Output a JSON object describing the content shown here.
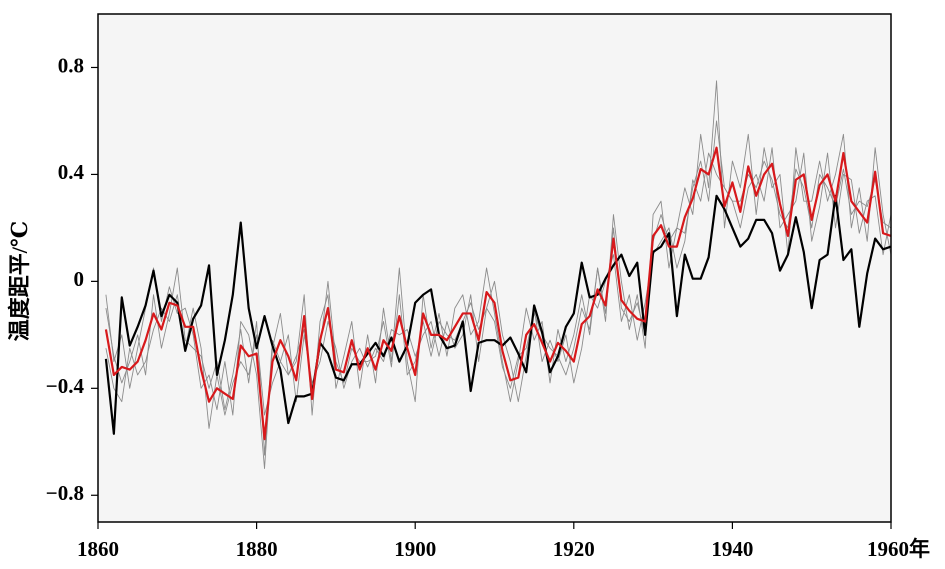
{
  "chart_data": {
    "type": "line",
    "y_label": "温度距平/℃",
    "x": [
      1861,
      1862,
      1863,
      1864,
      1865,
      1866,
      1867,
      1868,
      1869,
      1870,
      1871,
      1872,
      1873,
      1874,
      1875,
      1876,
      1877,
      1878,
      1879,
      1880,
      1881,
      1882,
      1883,
      1884,
      1885,
      1886,
      1887,
      1888,
      1889,
      1890,
      1891,
      1892,
      1893,
      1894,
      1895,
      1896,
      1897,
      1898,
      1899,
      1900,
      1901,
      1902,
      1903,
      1904,
      1905,
      1906,
      1907,
      1908,
      1909,
      1910,
      1911,
      1912,
      1913,
      1914,
      1915,
      1916,
      1917,
      1918,
      1919,
      1920,
      1921,
      1922,
      1923,
      1924,
      1925,
      1926,
      1927,
      1928,
      1929,
      1930,
      1931,
      1932,
      1933,
      1934,
      1935,
      1936,
      1937,
      1938,
      1939,
      1940,
      1941,
      1942,
      1943,
      1944,
      1945,
      1946,
      1947,
      1948,
      1949,
      1950,
      1951,
      1952,
      1953,
      1954,
      1955,
      1956,
      1957,
      1958,
      1959,
      1960
    ],
    "series": [
      {
        "color": "#8c8c8c",
        "values": [
          -0.05,
          -0.3,
          -0.2,
          -0.4,
          -0.25,
          -0.1,
          0.05,
          -0.15,
          -0.02,
          -0.12,
          -0.1,
          -0.2,
          -0.4,
          -0.35,
          -0.48,
          -0.3,
          -0.5,
          -0.15,
          -0.2,
          -0.35,
          -0.7,
          -0.25,
          -0.12,
          -0.35,
          -0.3,
          -0.05,
          -0.5,
          -0.15,
          -0.05,
          -0.4,
          -0.28,
          -0.15,
          -0.4,
          -0.2,
          -0.38,
          -0.1,
          -0.3,
          0.05,
          -0.3,
          -0.45,
          -0.05,
          -0.25,
          -0.12,
          -0.28,
          -0.1,
          -0.05,
          -0.2,
          -0.15,
          0.05,
          -0.12,
          -0.3,
          -0.45,
          -0.3,
          -0.1,
          -0.22,
          -0.15,
          -0.38,
          -0.18,
          -0.3,
          -0.2,
          -0.05,
          -0.2,
          0.05,
          -0.15,
          0.25,
          0.0,
          -0.18,
          -0.05,
          -0.25,
          0.25,
          0.3,
          0.05,
          0.2,
          0.35,
          0.25,
          0.55,
          0.35,
          0.75,
          0.2,
          0.45,
          0.35,
          0.55,
          0.25,
          0.5,
          0.35,
          0.4,
          0.1,
          0.5,
          0.3,
          0.3,
          0.45,
          0.3,
          0.4,
          0.55,
          0.2,
          0.35,
          0.15,
          0.5,
          0.25,
          0.1
        ]
      },
      {
        "color": "#8c8c8c",
        "values": [
          -0.25,
          -0.4,
          -0.45,
          -0.25,
          -0.35,
          -0.3,
          -0.18,
          -0.1,
          -0.15,
          -0.05,
          -0.25,
          -0.1,
          -0.25,
          -0.55,
          -0.35,
          -0.5,
          -0.38,
          -0.3,
          -0.35,
          -0.2,
          -0.5,
          -0.38,
          -0.3,
          -0.2,
          -0.45,
          -0.2,
          -0.38,
          -0.3,
          -0.15,
          -0.25,
          -0.4,
          -0.3,
          -0.25,
          -0.32,
          -0.25,
          -0.3,
          -0.18,
          -0.2,
          -0.18,
          -0.28,
          -0.2,
          -0.15,
          -0.28,
          -0.15,
          -0.25,
          -0.2,
          -0.05,
          -0.3,
          -0.1,
          0.0,
          -0.2,
          -0.3,
          -0.45,
          -0.28,
          -0.1,
          -0.3,
          -0.22,
          -0.3,
          -0.2,
          -0.38,
          -0.25,
          -0.05,
          -0.1,
          0.0,
          0.1,
          -0.15,
          -0.05,
          -0.22,
          -0.08,
          0.1,
          0.15,
          0.2,
          0.05,
          0.15,
          0.38,
          0.3,
          0.48,
          0.4,
          0.35,
          0.3,
          0.2,
          0.35,
          0.4,
          0.3,
          0.5,
          0.2,
          0.25,
          0.3,
          0.48,
          0.15,
          0.28,
          0.48,
          0.2,
          0.4,
          0.38,
          0.18,
          0.3,
          0.32,
          0.1,
          0.25
        ]
      },
      {
        "color": "#8c8c8c",
        "values": [
          -0.1,
          -0.28,
          -0.38,
          -0.3,
          -0.2,
          -0.35,
          -0.05,
          -0.25,
          -0.12,
          0.05,
          -0.22,
          -0.25,
          -0.28,
          -0.4,
          -0.3,
          -0.48,
          -0.35,
          -0.18,
          -0.38,
          -0.15,
          -0.65,
          -0.22,
          -0.3,
          -0.35,
          -0.28,
          -0.18,
          -0.4,
          -0.25,
          0.0,
          -0.3,
          -0.38,
          -0.25,
          -0.3,
          -0.3,
          -0.28,
          -0.15,
          -0.32,
          -0.05,
          -0.35,
          -0.3,
          -0.15,
          -0.28,
          -0.15,
          -0.2,
          -0.22,
          -0.15,
          -0.08,
          -0.18,
          -0.1,
          -0.15,
          -0.32,
          -0.4,
          -0.28,
          -0.25,
          -0.12,
          -0.2,
          -0.25,
          -0.28,
          -0.35,
          -0.25,
          -0.1,
          -0.18,
          0.05,
          -0.12,
          0.2,
          -0.1,
          -0.15,
          -0.08,
          -0.2,
          0.15,
          0.25,
          0.15,
          0.2,
          0.18,
          0.35,
          0.45,
          0.3,
          0.6,
          0.35,
          0.3,
          0.3,
          0.4,
          0.35,
          0.45,
          0.38,
          0.25,
          0.2,
          0.42,
          0.35,
          0.2,
          0.4,
          0.35,
          0.28,
          0.42,
          0.25,
          0.3,
          0.28,
          0.38,
          0.22,
          0.2
        ]
      },
      {
        "color": "#000000",
        "values": [
          -0.29,
          -0.57,
          -0.06,
          -0.24,
          -0.17,
          -0.09,
          0.04,
          -0.13,
          -0.05,
          -0.08,
          -0.26,
          -0.14,
          -0.09,
          0.06,
          -0.35,
          -0.22,
          -0.05,
          0.22,
          -0.1,
          -0.25,
          -0.13,
          -0.24,
          -0.33,
          -0.53,
          -0.43,
          -0.43,
          -0.42,
          -0.23,
          -0.27,
          -0.36,
          -0.37,
          -0.31,
          -0.31,
          -0.27,
          -0.23,
          -0.28,
          -0.21,
          -0.3,
          -0.24,
          -0.08,
          -0.05,
          -0.03,
          -0.2,
          -0.25,
          -0.24,
          -0.15,
          -0.41,
          -0.23,
          -0.22,
          -0.22,
          -0.24,
          -0.21,
          -0.27,
          -0.34,
          -0.09,
          -0.19,
          -0.34,
          -0.28,
          -0.17,
          -0.12,
          0.07,
          -0.06,
          -0.05,
          0.01,
          0.06,
          0.1,
          0.02,
          0.07,
          -0.2,
          0.11,
          0.13,
          0.18,
          -0.13,
          0.1,
          0.01,
          0.01,
          0.09,
          0.32,
          0.27,
          0.2,
          0.13,
          0.16,
          0.23,
          0.23,
          0.18,
          0.04,
          0.1,
          0.24,
          0.11,
          -0.1,
          0.08,
          0.1,
          0.32,
          0.08,
          0.12,
          -0.17,
          0.03,
          0.16,
          0.12,
          0.13
        ]
      },
      {
        "color": "#d7191c",
        "values": [
          -0.18,
          -0.35,
          -0.32,
          -0.33,
          -0.3,
          -0.22,
          -0.12,
          -0.18,
          -0.08,
          -0.09,
          -0.17,
          -0.17,
          -0.33,
          -0.45,
          -0.4,
          -0.42,
          -0.44,
          -0.24,
          -0.28,
          -0.27,
          -0.59,
          -0.3,
          -0.22,
          -0.28,
          -0.37,
          -0.13,
          -0.44,
          -0.22,
          -0.1,
          -0.33,
          -0.34,
          -0.22,
          -0.33,
          -0.25,
          -0.33,
          -0.22,
          -0.26,
          -0.13,
          -0.25,
          -0.35,
          -0.12,
          -0.2,
          -0.2,
          -0.22,
          -0.17,
          -0.12,
          -0.12,
          -0.22,
          -0.04,
          -0.08,
          -0.26,
          -0.37,
          -0.36,
          -0.2,
          -0.16,
          -0.23,
          -0.3,
          -0.23,
          -0.26,
          -0.3,
          -0.16,
          -0.13,
          -0.03,
          -0.09,
          0.16,
          -0.07,
          -0.11,
          -0.14,
          -0.15,
          0.17,
          0.21,
          0.13,
          0.13,
          0.24,
          0.31,
          0.42,
          0.4,
          0.5,
          0.28,
          0.37,
          0.26,
          0.43,
          0.32,
          0.4,
          0.44,
          0.29,
          0.17,
          0.38,
          0.4,
          0.23,
          0.36,
          0.4,
          0.3,
          0.48,
          0.3,
          0.26,
          0.22,
          0.41,
          0.18,
          0.17
        ]
      }
    ],
    "xlim": [
      1860,
      1960
    ],
    "xticks": [
      1860,
      1880,
      1900,
      1920,
      1940,
      {
        "value": 1960,
        "label": "1960年"
      }
    ],
    "ylim": [
      -0.9,
      1.0
    ],
    "yticks": [
      {
        "value": -0.8,
        "label": "−0.8"
      },
      {
        "value": -0.4,
        "label": "−0.4"
      },
      0,
      0.4,
      0.8
    ]
  }
}
